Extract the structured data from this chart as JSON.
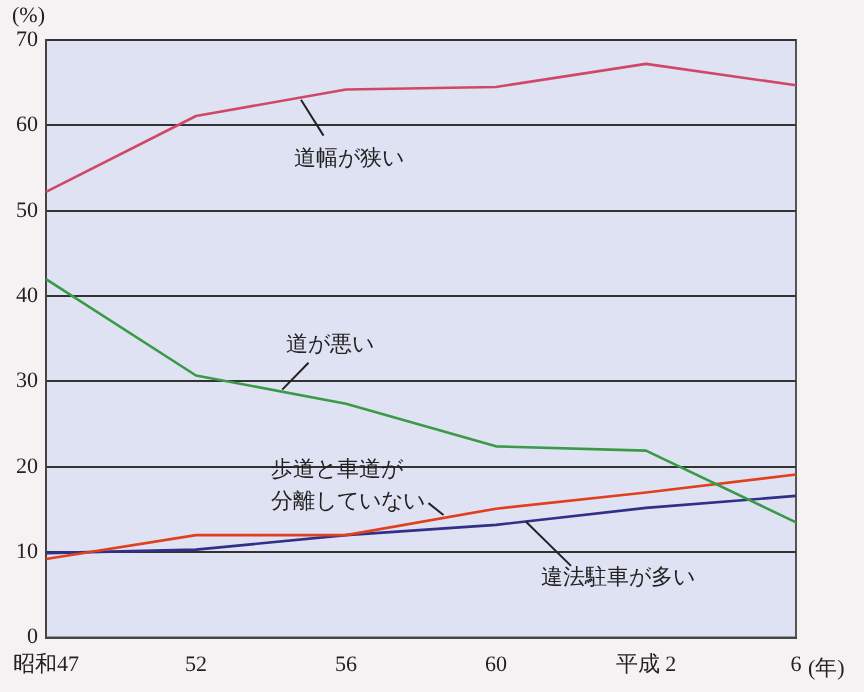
{
  "chart_data": {
    "type": "line",
    "xlabel": "(年)",
    "ylabel": "(%)",
    "categories": [
      "昭和47",
      "52",
      "56",
      "60",
      "平成 2",
      "6"
    ],
    "series": [
      {
        "name": "道幅が狭い",
        "color": "#d04868",
        "values": [
          52.2,
          61.1,
          64.2,
          64.5,
          67.2,
          64.7
        ]
      },
      {
        "name": "道が悪い",
        "color": "#3a9a48",
        "values": [
          42.0,
          30.7,
          27.4,
          22.4,
          21.9,
          13.5
        ]
      },
      {
        "name": "歩道と車道が分離していない",
        "color": "#e04020",
        "values": [
          9.2,
          12.0,
          12.0,
          15.1,
          17.0,
          19.1
        ]
      },
      {
        "name": "違法駐車が多い",
        "color": "#303088",
        "values": [
          9.9,
          10.3,
          12.0,
          13.2,
          15.2,
          16.6
        ]
      }
    ],
    "ylim": [
      0,
      70
    ],
    "yticks": [
      0,
      10,
      20,
      30,
      40,
      50,
      60,
      70
    ],
    "grid": "y",
    "legend": false,
    "marker": "none",
    "line_style": "solid"
  }
}
